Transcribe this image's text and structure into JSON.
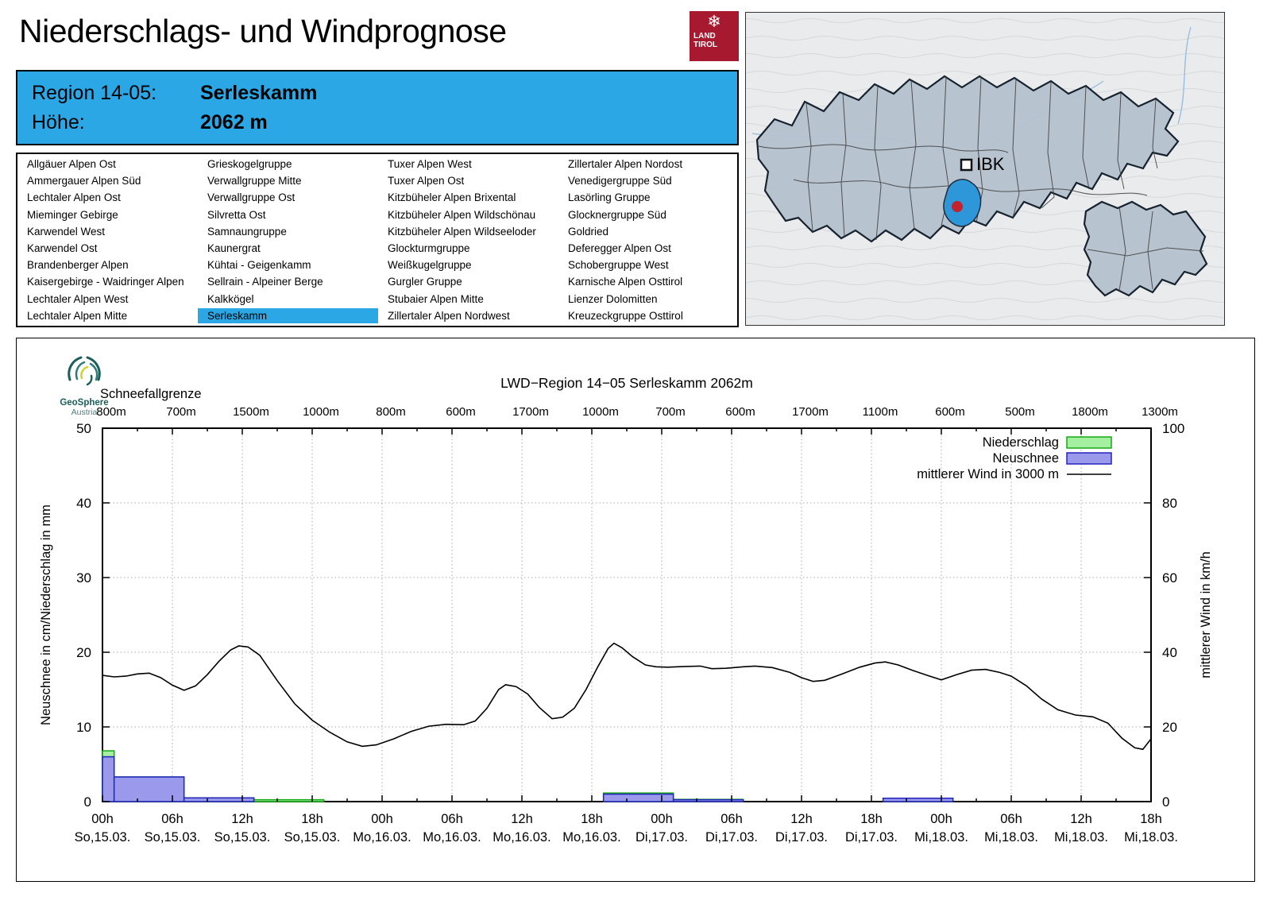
{
  "header": {
    "title": "Niederschlags- und Windprognose",
    "logo": {
      "line1": "LAND",
      "line2": "TIROL",
      "color": "#a6192e"
    }
  },
  "region_box": {
    "region_label": "Region 14-05:",
    "region_value": "Serleskamm",
    "altitude_label": "Höhe:",
    "altitude_value": "2062 m",
    "accent_color": "#2aa7e4"
  },
  "region_list": {
    "selected": "Serleskamm",
    "columns": [
      [
        "Allgäuer Alpen Ost",
        "Ammergauer Alpen Süd",
        "Lechtaler Alpen Ost",
        "Mieminger Gebirge",
        "Karwendel West",
        "Karwendel Ost",
        "Brandenberger Alpen",
        "Kaisergebirge - Waidringer Alpen",
        "Lechtaler Alpen West",
        "Lechtaler Alpen Mitte"
      ],
      [
        "Grieskogelgruppe",
        "Verwallgruppe Mitte",
        "Verwallgruppe Ost",
        "Silvretta Ost",
        "Samnaungruppe",
        "Kaunergrat",
        "Kühtai - Geigenkamm",
        "Sellrain - Alpeiner Berge",
        "Kalkkögel",
        "Serleskamm"
      ],
      [
        "Tuxer Alpen West",
        "Tuxer Alpen Ost",
        "Kitzbüheler Alpen Brixental",
        "Kitzbüheler Alpen Wildschönau",
        "Kitzbüheler Alpen Wildseeloder",
        "Glockturmgruppe",
        "Weißkugelgruppe",
        "Gurgler Gruppe",
        "Stubaier Alpen Mitte",
        "Zillertaler Alpen Nordwest"
      ],
      [
        "Zillertaler Alpen Nordost",
        "Venedigergruppe Süd",
        "Lasörling Gruppe",
        "Glocknergruppe Süd",
        "Goldried",
        "Deferegger Alpen Ost",
        "Schobergruppe West",
        "Karnische Alpen Osttirol",
        "Lienzer Dolomitten",
        "Kreuzeckgruppe Osttirol"
      ]
    ]
  },
  "map": {
    "city_label": "IBK",
    "selected_region_color": "#2e97da",
    "marker_color": "#c3232e"
  },
  "chart": {
    "source_logo": {
      "name": "GeoSphere",
      "sub": "Austria"
    },
    "snowline_label": "Schneefallgrenze"
  },
  "chart_data": {
    "type": [
      "bar",
      "line"
    ],
    "title": "LWD−Region 14−05 Serleskamm 2062m",
    "x_unit": "hours from So,15.03. 00h",
    "x_range": [
      0,
      90
    ],
    "x_tick_interval_h": 6,
    "x_time_labels": [
      "00h",
      "06h",
      "12h",
      "18h",
      "00h",
      "06h",
      "12h",
      "18h",
      "00h",
      "06h",
      "12h",
      "18h",
      "00h",
      "06h",
      "12h",
      "18h"
    ],
    "x_date_labels": [
      "So,15.03.",
      "So,15.03.",
      "So,15.03.",
      "So,15.03.",
      "Mo,16.03.",
      "Mo,16.03.",
      "Mo,16.03.",
      "Mo,16.03.",
      "Di,17.03.",
      "Di,17.03.",
      "Di,17.03.",
      "Di,17.03.",
      "Mi,18.03.",
      "Mi,18.03.",
      "Mi,18.03.",
      "Mi,18.03."
    ],
    "y_left": {
      "label": "Neuschnee in cm/Niederschlag in mm",
      "ticks": [
        0,
        10,
        20,
        30,
        40,
        50
      ],
      "max": 50
    },
    "y_right": {
      "label": "mittlerer Wind in km/h",
      "ticks": [
        0,
        20,
        40,
        60,
        80,
        100
      ],
      "max": 100
    },
    "snowline": {
      "values_m": [
        "800m",
        "700m",
        "1500m",
        "1000m",
        "800m",
        "600m",
        "1700m",
        "1000m",
        "700m",
        "600m",
        "1700m",
        "1100m",
        "600m",
        "500m",
        "1800m",
        "1300m"
      ]
    },
    "series": [
      {
        "name": "Niederschlag",
        "type": "bar",
        "unit": "mm",
        "axis": "left",
        "fill": "#a4f0a0",
        "stroke": "#15a815",
        "intervals": [
          {
            "start": 0,
            "end": 1,
            "value": 6.8
          },
          {
            "start": 1,
            "end": 7,
            "value": 3.3
          },
          {
            "start": 7,
            "end": 13,
            "value": 0.5
          },
          {
            "start": 13,
            "end": 19,
            "value": 0.25
          },
          {
            "start": 43,
            "end": 49,
            "value": 1.15
          },
          {
            "start": 49,
            "end": 55,
            "value": 0.3
          },
          {
            "start": 67,
            "end": 73,
            "value": 0.45
          }
        ]
      },
      {
        "name": "Neuschnee",
        "type": "bar",
        "unit": "cm",
        "axis": "left",
        "fill": "#9a99ec",
        "stroke": "#2424bd",
        "intervals": [
          {
            "start": 0,
            "end": 1,
            "value": 6.0
          },
          {
            "start": 1,
            "end": 7,
            "value": 3.3
          },
          {
            "start": 7,
            "end": 13,
            "value": 0.5
          },
          {
            "start": 13,
            "end": 19,
            "value": 0
          },
          {
            "start": 43,
            "end": 49,
            "value": 1.0
          },
          {
            "start": 49,
            "end": 55,
            "value": 0.25
          },
          {
            "start": 67,
            "end": 73,
            "value": 0.45
          }
        ]
      },
      {
        "name": "mittlerer Wind in 3000 m",
        "type": "line",
        "unit": "km/h",
        "axis": "right",
        "stroke": "#000000",
        "points": [
          [
            0,
            33.8
          ],
          [
            1,
            33.4
          ],
          [
            2,
            33.6
          ],
          [
            3,
            34.2
          ],
          [
            4,
            34.4
          ],
          [
            5,
            33.2
          ],
          [
            6,
            31.2
          ],
          [
            7,
            29.8
          ],
          [
            8,
            31.0
          ],
          [
            9,
            34.0
          ],
          [
            10,
            37.6
          ],
          [
            11,
            40.6
          ],
          [
            11.7,
            41.7
          ],
          [
            12.5,
            41.4
          ],
          [
            13.5,
            39.2
          ],
          [
            15,
            32.4
          ],
          [
            16.5,
            26.2
          ],
          [
            18,
            21.8
          ],
          [
            19.5,
            18.6
          ],
          [
            21,
            16.0
          ],
          [
            22.3,
            14.8
          ],
          [
            23.5,
            15.2
          ],
          [
            25,
            16.8
          ],
          [
            26.5,
            18.8
          ],
          [
            28,
            20.2
          ],
          [
            29.5,
            20.7
          ],
          [
            31,
            20.6
          ],
          [
            32,
            21.6
          ],
          [
            33,
            25.0
          ],
          [
            34,
            30.0
          ],
          [
            34.6,
            31.3
          ],
          [
            35.5,
            30.8
          ],
          [
            36.5,
            28.8
          ],
          [
            37.5,
            25.2
          ],
          [
            38.6,
            22.2
          ],
          [
            39.5,
            22.6
          ],
          [
            40.5,
            25.0
          ],
          [
            41.5,
            30.0
          ],
          [
            42.5,
            36.0
          ],
          [
            43.4,
            41.0
          ],
          [
            43.9,
            42.4
          ],
          [
            44.6,
            41.2
          ],
          [
            45.5,
            38.8
          ],
          [
            46.6,
            36.6
          ],
          [
            47.5,
            36.1
          ],
          [
            48.5,
            36.0
          ],
          [
            50,
            36.2
          ],
          [
            51.3,
            36.3
          ],
          [
            52.3,
            35.6
          ],
          [
            53.5,
            35.7
          ],
          [
            55,
            36.1
          ],
          [
            56,
            36.3
          ],
          [
            57.5,
            35.9
          ],
          [
            59,
            34.6
          ],
          [
            60,
            33.2
          ],
          [
            61,
            32.2
          ],
          [
            62,
            32.5
          ],
          [
            63.5,
            34.2
          ],
          [
            65,
            36.0
          ],
          [
            66.3,
            37.1
          ],
          [
            67.2,
            37.4
          ],
          [
            68.3,
            36.6
          ],
          [
            69.5,
            35.2
          ],
          [
            70.8,
            33.8
          ],
          [
            72,
            32.6
          ],
          [
            73.3,
            34.0
          ],
          [
            74.6,
            35.2
          ],
          [
            75.8,
            35.4
          ],
          [
            77,
            34.6
          ],
          [
            78,
            33.6
          ],
          [
            79.3,
            31.0
          ],
          [
            80.6,
            27.5
          ],
          [
            82,
            24.6
          ],
          [
            83.5,
            23.2
          ],
          [
            85,
            22.7
          ],
          [
            86.3,
            21.0
          ],
          [
            87.5,
            17.0
          ],
          [
            88.6,
            14.4
          ],
          [
            89.3,
            14.0
          ],
          [
            90,
            16.8
          ]
        ]
      }
    ],
    "legend_position": "top-right",
    "grid": "dotted"
  }
}
